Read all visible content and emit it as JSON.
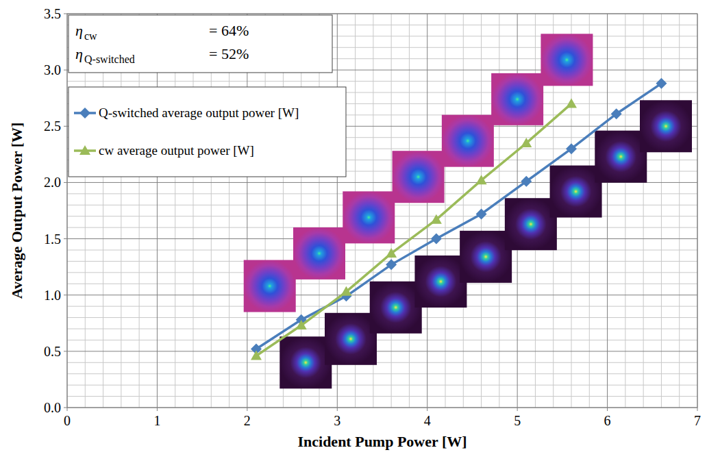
{
  "chart_data": {
    "type": "line",
    "x_label": "Incident Pump Power [W]",
    "y_label": "Average Output Power [W]",
    "xlim": [
      0,
      7
    ],
    "xticks": [
      0,
      1,
      2,
      3,
      4,
      5,
      6,
      7
    ],
    "ylim": [
      0,
      3.5
    ],
    "yticks": [
      {
        "value": 0,
        "label": "0.0"
      },
      0.5,
      {
        "value": 1,
        "label": "1.0"
      },
      1.5,
      {
        "value": 2,
        "label": "2.0"
      },
      2.5,
      {
        "value": 3,
        "label": "3.0"
      },
      3.5
    ],
    "grid": true,
    "legend": "top-left",
    "annotations": [
      {
        "symbol": "η",
        "subscript": "cw",
        "text": "= 64%"
      },
      {
        "symbol": "η",
        "subscript": "Q-switched",
        "text": "= 52%"
      }
    ],
    "series": [
      {
        "name": "Q-switched average output power [W]",
        "color": "#4a7ebb",
        "marker": "diamond",
        "line_style": "solid",
        "x": [
          2.1,
          2.6,
          3.1,
          3.6,
          4.1,
          4.6,
          5.1,
          5.6,
          6.1,
          6.6
        ],
        "values": [
          0.52,
          0.78,
          0.99,
          1.27,
          1.5,
          1.72,
          2.01,
          2.3,
          2.61,
          2.88
        ]
      },
      {
        "name": "cw average output power [W]",
        "color": "#9bbb59",
        "marker": "triangle",
        "line_style": "solid",
        "x": [
          2.1,
          2.6,
          3.1,
          3.6,
          4.1,
          4.6,
          5.1,
          5.6
        ],
        "values": [
          0.46,
          0.73,
          1.03,
          1.37,
          1.67,
          2.02,
          2.35,
          2.7
        ]
      }
    ]
  }
}
